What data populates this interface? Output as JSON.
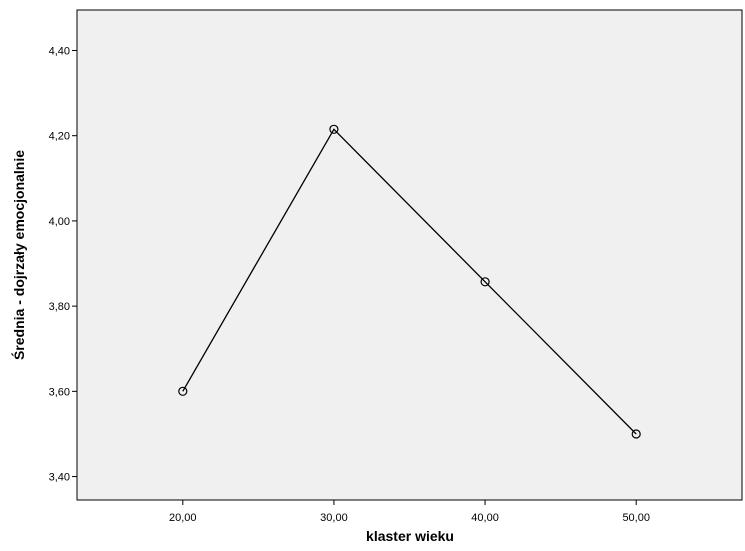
{
  "colors": {
    "plot_background": "#f0f0f0",
    "page_background": "#ffffff",
    "line": "#000000",
    "marker_stroke": "#000000"
  },
  "chart_data": {
    "type": "line",
    "title": "",
    "xlabel": "klaster wieku",
    "ylabel": "Średnia - dojrzały emocjonalnie",
    "x_tick_labels": [
      "20,00",
      "30,00",
      "40,00",
      "50,00"
    ],
    "y_tick_labels": [
      "3,40",
      "3,60",
      "3,80",
      "4,00",
      "4,20",
      "4,40"
    ],
    "x_ticks": [
      20,
      30,
      40,
      50
    ],
    "y_ticks": [
      3.4,
      3.6,
      3.8,
      4.0,
      4.2,
      4.4
    ],
    "xlim": [
      13,
      57
    ],
    "ylim": [
      3.345,
      4.495
    ],
    "grid": false,
    "legend": "none",
    "marker": "open-circle",
    "series": [
      {
        "x": [
          20,
          30,
          40,
          50
        ],
        "values": [
          3.6,
          4.215,
          3.857,
          3.5
        ]
      }
    ]
  }
}
